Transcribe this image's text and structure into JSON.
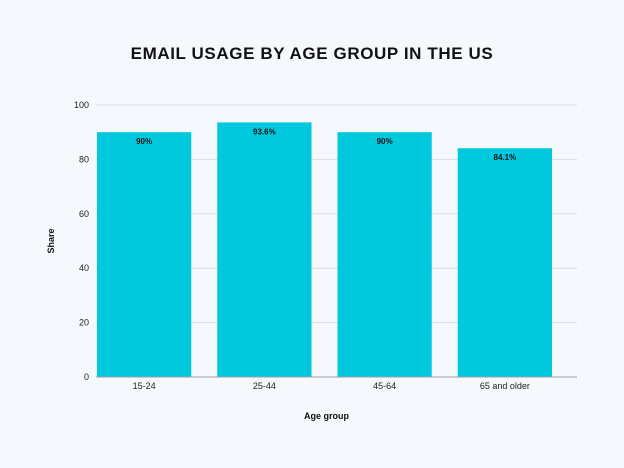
{
  "chart_data": {
    "type": "bar",
    "title": "EMAIL USAGE BY AGE GROUP IN THE US",
    "xlabel": "Age group",
    "ylabel": "Share",
    "categories": [
      "15-24",
      "25-44",
      "45-64",
      "65 and older"
    ],
    "values": [
      90,
      93.6,
      90,
      84.1
    ],
    "data_labels": [
      "90%",
      "93.6%",
      "90%",
      "84.1%"
    ],
    "yticks": [
      "0",
      "20",
      "40",
      "60",
      "80",
      "100"
    ],
    "ylim": [
      0,
      100
    ],
    "grid": true,
    "legend": "none",
    "colors": {
      "bar": "#00c9dd",
      "grid": "#d9dde3",
      "axis": "#9aa0a6",
      "background": "#f5f8fc"
    }
  }
}
